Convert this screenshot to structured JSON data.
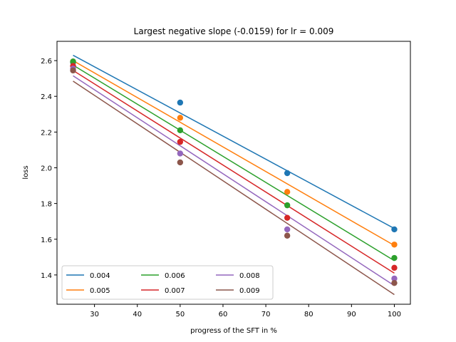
{
  "chart_data": {
    "type": "scatter",
    "title": "Largest negative slope (-0.0159) for lr = 0.009",
    "xlabel": "progress of the SFT in %",
    "ylabel": "loss",
    "xlim": [
      21.25,
      103.75
    ],
    "ylim": [
      1.236,
      2.708
    ],
    "xticks": [
      30,
      40,
      50,
      60,
      70,
      80,
      90,
      100
    ],
    "yticks": [
      1.4,
      1.6,
      1.8,
      2.0,
      2.2,
      2.4,
      2.6
    ],
    "ytick_labels": [
      "1.4",
      "1.6",
      "1.8",
      "2.0",
      "2.2",
      "2.4",
      "2.6"
    ],
    "legend": {
      "placement": "lower-left",
      "columns": 3
    },
    "x": [
      25,
      50,
      75,
      100
    ],
    "series": [
      {
        "name": "0.004",
        "color": "#1f77b4",
        "points": [
          2.59,
          2.365,
          1.97,
          1.655
        ],
        "fit": [
          2.63,
          1.66
        ]
      },
      {
        "name": "0.005",
        "color": "#ff7f0e",
        "points": [
          2.595,
          2.28,
          1.865,
          1.57
        ],
        "fit": [
          2.6,
          1.565
        ]
      },
      {
        "name": "0.006",
        "color": "#2ca02c",
        "points": [
          2.595,
          2.21,
          1.79,
          1.495
        ],
        "fit": [
          2.575,
          1.48
        ]
      },
      {
        "name": "0.007",
        "color": "#d62728",
        "points": [
          2.57,
          2.145,
          1.72,
          1.44
        ],
        "fit": [
          2.545,
          1.41
        ]
      },
      {
        "name": "0.008",
        "color": "#9467bd",
        "points": [
          2.555,
          2.08,
          1.655,
          1.38
        ],
        "fit": [
          2.515,
          1.34
        ]
      },
      {
        "name": "0.009",
        "color": "#8c564b",
        "points": [
          2.545,
          2.03,
          1.62,
          1.355
        ],
        "fit": [
          2.485,
          1.29
        ]
      }
    ]
  }
}
